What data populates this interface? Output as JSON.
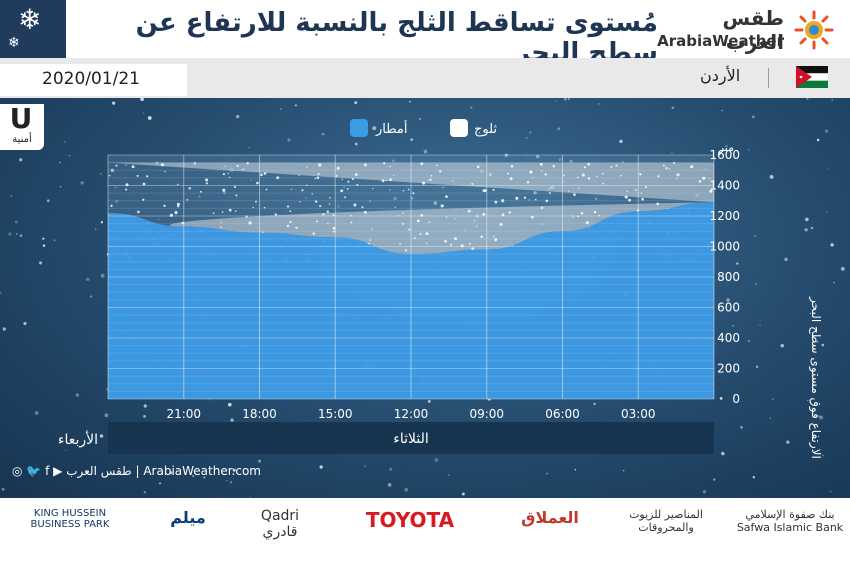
{
  "header": {
    "title": "مُستوى تساقط الثلج بالنسبة للارتفاع عن سطح البحر",
    "logo_ar": "طقس العرب",
    "logo_en": "ArabiaWeather"
  },
  "subbar": {
    "date": "2020/01/21",
    "country": "الأردن"
  },
  "badge": {
    "letter": "U",
    "label": "أمنية"
  },
  "legend": {
    "snow": "ثلوج",
    "rain": "أمطار"
  },
  "colors": {
    "rain": "#3d9be6",
    "snow": "#cfd8e0",
    "header_dark": "#203b5c"
  },
  "day_labels": {
    "wednesday": "الأربعاء",
    "tuesday": "الثلاثاء"
  },
  "footer": {
    "social_text": "طقس العرب | ArabiaWeather.com",
    "sponsors": [
      "بنك صفوة الإسلامي Safwa Islamic Bank",
      "المناصير للزيوت والمحروقات",
      "العملاق",
      "TOYOTA",
      "Qadri قادري",
      "ميلم",
      "KING HUSSEIN BUSINESS PARK"
    ]
  },
  "chart_data": {
    "type": "area",
    "ylabel": "الارتفاع فوق مستوى سطح البحر",
    "yunit": "متر",
    "ylim": [
      0,
      1600
    ],
    "yticks": [
      0,
      200,
      400,
      600,
      800,
      1000,
      1200,
      1400,
      1600
    ],
    "xticks": [
      "03:00",
      "06:00",
      "09:00",
      "12:00",
      "15:00",
      "18:00",
      "21:00"
    ],
    "x_hours": [
      0,
      3,
      6,
      9,
      12,
      15,
      18,
      21,
      24
    ],
    "snow_level": [
      1290,
      1230,
      1100,
      980,
      950,
      1060,
      1090,
      1130,
      1220
    ],
    "snow_band_top": 1550,
    "grid": true
  }
}
